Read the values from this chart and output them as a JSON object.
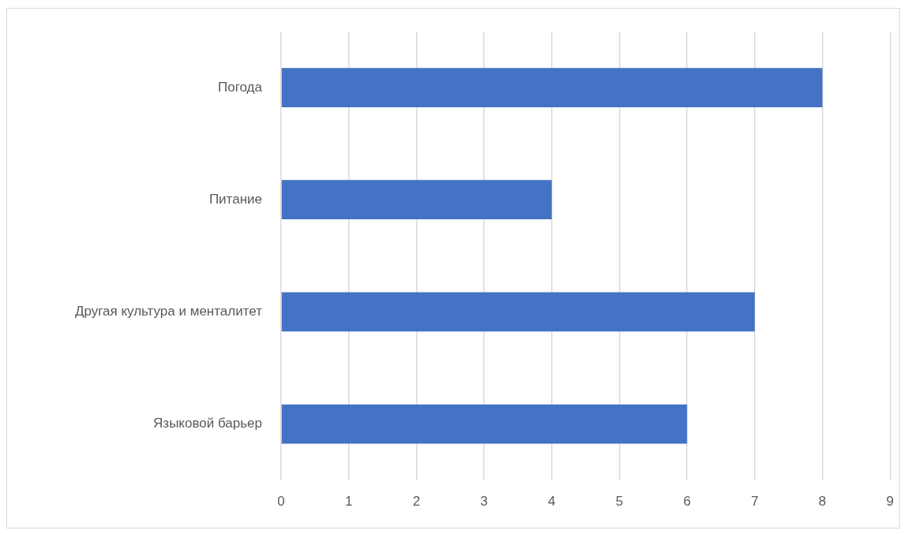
{
  "chart_data": {
    "type": "bar",
    "orientation": "horizontal",
    "categories": [
      "Погода",
      "Питание",
      "Другая культура и менталитет",
      "Языковой барьер"
    ],
    "values": [
      8,
      4,
      7,
      6
    ],
    "color": "#4472c4",
    "xlim": [
      0,
      9
    ],
    "xticks": [
      0,
      1,
      2,
      3,
      4,
      5,
      6,
      7,
      8,
      9
    ],
    "grid": "x",
    "legend": false
  }
}
